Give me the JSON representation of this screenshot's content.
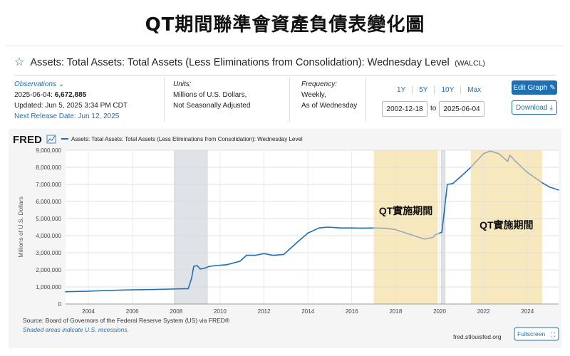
{
  "banner": {
    "title": "QT期間聯準會資產負債表變化圖"
  },
  "header": {
    "series_title": "Assets: Total Assets: Total Assets (Less Eliminations from Consolidation): Wednesday Level",
    "series_id": "(WALCL)"
  },
  "observations": {
    "label": "Observations",
    "date": "2025-06-04:",
    "value": "6,672,885",
    "updated": "Updated: Jun 5, 2025 3:34 PM CDT",
    "next_release": "Next Release Date: Jun 12, 2025"
  },
  "units": {
    "label": "Units:",
    "line1": "Millions of U.S. Dollars,",
    "line2": "Not Seasonally Adjusted"
  },
  "frequency": {
    "label": "Frequency:",
    "line1": "Weekly,",
    "line2": "As of Wednesday"
  },
  "range": {
    "buttons": [
      "1Y",
      "5Y",
      "10Y",
      "Max"
    ],
    "start": "2002-12-18",
    "to": "to",
    "end": "2025-06-04"
  },
  "actions": {
    "edit": "Edit Graph",
    "download": "Download",
    "fullscreen": "Fullscreen"
  },
  "footer": {
    "source": "Source: Board of Governors of the Federal Reserve System (US) via FRED®",
    "shaded": "Shaded areas indicate U.S. recessions.",
    "site": "fred.stlouisfed.org"
  },
  "chart_data": {
    "type": "line",
    "logo": "FRED",
    "legend": "Assets: Total Assets: Total Assets (Less Eliminations from Consolidation): Wednesday Level",
    "ylabel": "Millions of U.S. Dollars",
    "xlabel": "",
    "xlim": [
      2002.96,
      2025.42
    ],
    "ylim": [
      0,
      9000000
    ],
    "y_ticks": [
      0,
      1000000,
      2000000,
      3000000,
      4000000,
      5000000,
      6000000,
      7000000,
      8000000,
      9000000
    ],
    "y_tick_labels": [
      "0",
      "1,000,000",
      "2,000,000",
      "3,000,000",
      "4,000,000",
      "5,000,000",
      "6,000,000",
      "7,000,000",
      "8,000,000",
      "9,000,000"
    ],
    "x_ticks": [
      2004,
      2006,
      2008,
      2010,
      2012,
      2014,
      2016,
      2018,
      2020,
      2022,
      2024
    ],
    "x_tick_labels": [
      "2004",
      "2006",
      "2008",
      "2010",
      "2012",
      "2014",
      "2016",
      "2018",
      "2020",
      "2022",
      "2024"
    ],
    "recessions": [
      [
        2007.92,
        2009.42
      ],
      [
        2020.08,
        2020.25
      ]
    ],
    "qt_periods": [
      {
        "range": [
          2017.0,
          2019.92
        ],
        "label": "QT實施期間"
      },
      {
        "range": [
          2021.42,
          2024.67
        ],
        "label": "QT實施期間"
      }
    ],
    "colors": {
      "line": "#1f6fb5",
      "line_qt": "#9aa9b7",
      "qt": "#f6e4b3",
      "recession": "#dfe3e7",
      "panel": "#f5f5f5",
      "plot": "#ffffff"
    },
    "series": [
      {
        "name": "Assets: Total Assets: Total Assets (Less Eliminations from Consolidation): Wednesday Level",
        "x": [
          2002.96,
          2004.0,
          2005.0,
          2006.0,
          2007.0,
          2007.9,
          2008.55,
          2008.7,
          2008.8,
          2008.95,
          2009.1,
          2009.3,
          2009.5,
          2009.8,
          2010.3,
          2010.9,
          2011.2,
          2011.6,
          2012.0,
          2012.4,
          2012.9,
          2013.5,
          2014.0,
          2014.5,
          2014.9,
          2015.5,
          2016.0,
          2016.5,
          2017.0,
          2017.6,
          2018.0,
          2018.6,
          2019.3,
          2019.7,
          2019.8,
          2020.0,
          2020.1,
          2020.2,
          2020.35,
          2020.6,
          2021.0,
          2021.42,
          2022.0,
          2022.3,
          2022.7,
          2023.1,
          2023.2,
          2023.5,
          2024.0,
          2024.67,
          2025.0,
          2025.42
        ],
        "y": [
          720000,
          750000,
          800000,
          830000,
          850000,
          880000,
          900000,
          1500000,
          2200000,
          2250000,
          2050000,
          2100000,
          2200000,
          2250000,
          2300000,
          2500000,
          2850000,
          2850000,
          2950000,
          2850000,
          2900000,
          3600000,
          4150000,
          4450000,
          4500000,
          4450000,
          4450000,
          4440000,
          4450000,
          4430000,
          4350000,
          4100000,
          3800000,
          3900000,
          4050000,
          4150000,
          4200000,
          5300000,
          7000000,
          7050000,
          7500000,
          8000000,
          8800000,
          8950000,
          8800000,
          8350000,
          8700000,
          8300000,
          7700000,
          7100000,
          6850000,
          6672885
        ]
      }
    ]
  }
}
